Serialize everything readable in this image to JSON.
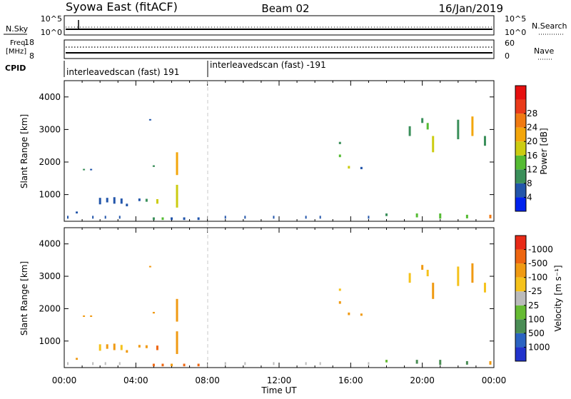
{
  "header": {
    "station": "Syowa East (fitACF)",
    "beam": "Beam 02",
    "date": "16/Jan/2019"
  },
  "top_panels": {
    "nsky_label": "N.Sky",
    "nsearch_label": "N.Search",
    "noise_ticks_left": [
      "10^5",
      "10^0"
    ],
    "noise_ticks_right": [
      "10^5",
      "10^0"
    ],
    "freq_label": "Freq.",
    "freq_unit": "[MHz]",
    "freq_ticks": [
      "18",
      "8"
    ],
    "nave_ticks": [
      "60",
      "0"
    ],
    "nave_label": "Nave",
    "cpid_label": "CPID",
    "cpid_segments": [
      {
        "label": "interleavedscan (fast) 191",
        "start": 0,
        "end": 8
      },
      {
        "label": "interleavedscan (fast) -191",
        "start": 8,
        "end": 24
      }
    ]
  },
  "power_colorbar": {
    "label": "Power [dB]",
    "ticks": [
      "4",
      "8",
      "12",
      "16",
      "20",
      "24",
      "28"
    ],
    "colors": [
      "#0022ee",
      "#2255aa",
      "#3a8f5a",
      "#55bb33",
      "#cccc11",
      "#f3a60b",
      "#f07a12",
      "#ea3b1a",
      "#e60f0f"
    ]
  },
  "velocity_colorbar": {
    "label": "Velocity [m s⁻¹]",
    "ticks": [
      "1000",
      "500",
      "100",
      "25",
      "-25",
      "-100",
      "-500",
      "-1000"
    ],
    "colors": [
      "#2233cc",
      "#2b63c2",
      "#4a8d55",
      "#66bb33",
      "#bbbbbb",
      "#f5c21b",
      "#f09a12",
      "#ee6611",
      "#e82a17"
    ]
  },
  "chart_data": {
    "type": "heatmap",
    "xlabel": "Time UT",
    "ylabel": "Slant Range [km]",
    "x_range_hours": [
      0,
      24
    ],
    "y_range_km": [
      180,
      4500
    ],
    "x_ticks": [
      "00:00",
      "04:00",
      "08:00",
      "12:00",
      "16:00",
      "20:00",
      "00:00"
    ],
    "y_ticks": [
      "1000",
      "2000",
      "3000",
      "4000"
    ],
    "panels": [
      {
        "name": "power",
        "y_label": "Slant Range [km]"
      },
      {
        "name": "velocity",
        "y_label": "Slant Range [km]"
      }
    ],
    "echo_clusters": [
      {
        "t": 0.7,
        "r": [
          420,
          480
        ],
        "p": 1,
        "v": 6
      },
      {
        "t": 1.1,
        "r": [
          1760,
          1790
        ],
        "p": 2,
        "v": 6
      },
      {
        "t": 1.5,
        "r": [
          1760,
          1790
        ],
        "p": 1,
        "v": 6
      },
      {
        "t": 2.0,
        "r": [
          700,
          900
        ],
        "p": 1,
        "v": 5
      },
      {
        "t": 2.4,
        "r": [
          760,
          900
        ],
        "p": 1,
        "v": 6
      },
      {
        "t": 2.8,
        "r": [
          720,
          920
        ],
        "p": 1,
        "v": 6
      },
      {
        "t": 3.2,
        "r": [
          720,
          880
        ],
        "p": 1,
        "v": 5
      },
      {
        "t": 3.5,
        "r": [
          640,
          720
        ],
        "p": 1,
        "v": 6
      },
      {
        "t": 4.2,
        "r": [
          800,
          880
        ],
        "p": 1,
        "v": 6
      },
      {
        "t": 4.6,
        "r": [
          780,
          870
        ],
        "p": 2,
        "v": 6
      },
      {
        "t": 4.8,
        "r": [
          3280,
          3320
        ],
        "p": 1,
        "v": 6
      },
      {
        "t": 5.0,
        "r": [
          1850,
          1900
        ],
        "p": 2,
        "v": 6
      },
      {
        "t": 5.2,
        "r": [
          720,
          860
        ],
        "p": 4,
        "v": 7
      },
      {
        "t": 5.0,
        "r": [
          220,
          300
        ],
        "p": 2,
        "v": 7
      },
      {
        "t": 5.5,
        "r": [
          220,
          300
        ],
        "p": 3,
        "v": 7
      },
      {
        "t": 6.0,
        "r": [
          220,
          300
        ],
        "p": 1,
        "v": 6
      },
      {
        "t": 6.3,
        "r": [
          1600,
          2300
        ],
        "p": 5,
        "v": 6
      },
      {
        "t": 6.3,
        "r": [
          600,
          1300
        ],
        "p": 4,
        "v": 6
      },
      {
        "t": 6.7,
        "r": [
          220,
          300
        ],
        "p": 1,
        "v": 7
      },
      {
        "t": 7.5,
        "r": [
          220,
          300
        ],
        "p": 1,
        "v": 7
      },
      {
        "t": 15.4,
        "r": [
          2550,
          2620
        ],
        "p": 2,
        "v": 5
      },
      {
        "t": 15.4,
        "r": [
          2150,
          2230
        ],
        "p": 3,
        "v": 6
      },
      {
        "t": 15.9,
        "r": [
          1800,
          1880
        ],
        "p": 4,
        "v": 6
      },
      {
        "t": 16.6,
        "r": [
          1780,
          1850
        ],
        "p": 1,
        "v": 6
      },
      {
        "t": 18.0,
        "r": [
          340,
          420
        ],
        "p": 2,
        "v": 3
      },
      {
        "t": 19.3,
        "r": [
          2800,
          3100
        ],
        "p": 2,
        "v": 5
      },
      {
        "t": 19.7,
        "r": [
          300,
          420
        ],
        "p": 3,
        "v": 2
      },
      {
        "t": 20.0,
        "r": [
          3200,
          3350
        ],
        "p": 2,
        "v": 6
      },
      {
        "t": 20.3,
        "r": [
          3000,
          3200
        ],
        "p": 3,
        "v": 5
      },
      {
        "t": 20.6,
        "r": [
          2300,
          2800
        ],
        "p": 4,
        "v": 6
      },
      {
        "t": 21.0,
        "r": [
          260,
          420
        ],
        "p": 3,
        "v": 2
      },
      {
        "t": 22.0,
        "r": [
          2700,
          3300
        ],
        "p": 2,
        "v": 5
      },
      {
        "t": 22.5,
        "r": [
          270,
          380
        ],
        "p": 3,
        "v": 2
      },
      {
        "t": 22.8,
        "r": [
          2800,
          3400
        ],
        "p": 5,
        "v": 6
      },
      {
        "t": 23.5,
        "r": [
          2500,
          2800
        ],
        "p": 2,
        "v": 5
      },
      {
        "t": 23.8,
        "r": [
          270,
          380
        ],
        "p": 6,
        "v": 6
      }
    ]
  }
}
